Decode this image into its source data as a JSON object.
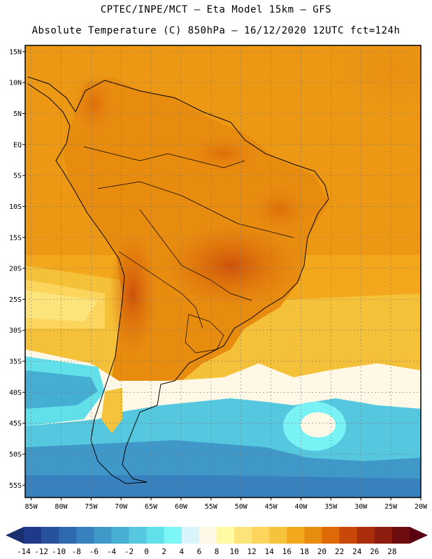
{
  "header": {
    "line1": "CPTEC/INPE/MCT –  Eta Model 15km – GFS",
    "line2": "Absolute Temperature (C) 850hPa – 16/12/2020 12UTC fct=124h"
  },
  "map": {
    "lat_labels": [
      "15N",
      "10N",
      "5N",
      "EQ",
      "5S",
      "10S",
      "15S",
      "20S",
      "25S",
      "30S",
      "35S",
      "40S",
      "45S",
      "50S",
      "55S"
    ],
    "lon_labels": [
      "85W",
      "80W",
      "75W",
      "70W",
      "65W",
      "60W",
      "55W",
      "50W",
      "45W",
      "40W",
      "35W",
      "30W",
      "25W",
      "20W"
    ],
    "lat_range": [
      -57,
      16
    ],
    "lon_range": [
      -86,
      -20
    ],
    "grid": true
  },
  "colorbar": {
    "tick_labels": [
      "-14",
      "-12",
      "-10",
      "-8",
      "-6",
      "-4",
      "-2",
      "0",
      "2",
      "4",
      "6",
      "8",
      "10",
      "12",
      "14",
      "16",
      "18",
      "20",
      "22",
      "24",
      "26",
      "28"
    ],
    "colors": [
      "#1f3a8a",
      "#27519c",
      "#2e69ad",
      "#3781bf",
      "#3f98c8",
      "#45aed3",
      "#55c8e0",
      "#62e0ea",
      "#7cf6f6",
      "#d9f4fa",
      "#fff8e6",
      "#fffaa3",
      "#fde47a",
      "#fbd55c",
      "#f5c43c",
      "#f2a71c",
      "#e88c10",
      "#dd6a06",
      "#c8470a",
      "#aa2e0c",
      "#8b1c0e",
      "#6d0d10"
    ],
    "left_arrow_color": "#1a2f6e",
    "right_arrow_color": "#5a0010"
  }
}
